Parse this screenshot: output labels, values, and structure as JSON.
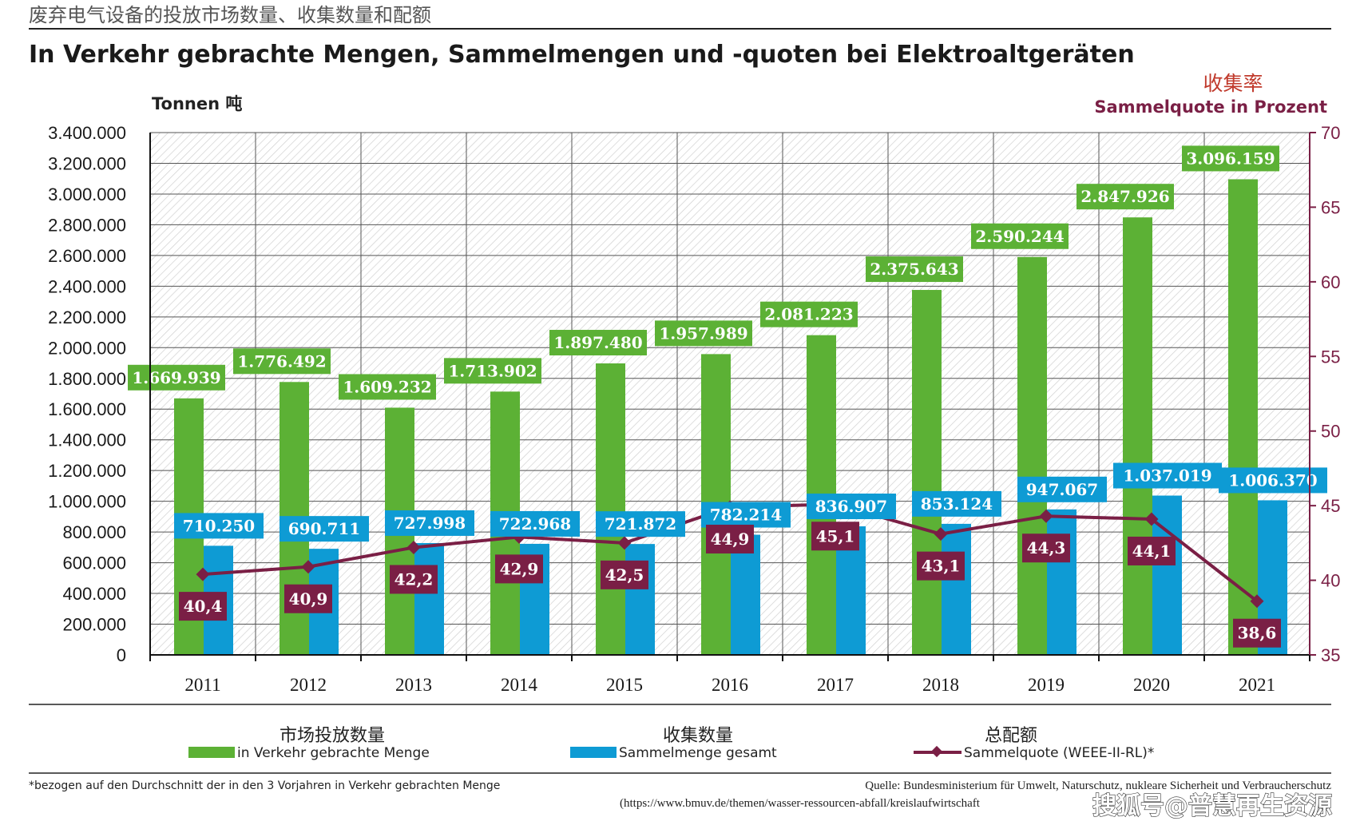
{
  "header": {
    "title_cn": "废弃电气设备的投放市场数量、收集数量和配额",
    "title_de": "In Verkehr gebrachte Mengen, Sammelmengen und -quoten bei Elektroaltgeräten",
    "unit_left": "Tonnen 吨",
    "rate_cn": "收集率",
    "rate_de": "Sammelquote in Prozent"
  },
  "colors": {
    "green": "#5cb135",
    "blue": "#0e9bd4",
    "maroon": "#7a1f45",
    "grid": "#555555"
  },
  "chart_data": {
    "type": "bar",
    "title": "In Verkehr gebrachte Mengen, Sammelmengen und -quoten bei Elektroaltgeräten",
    "categories": [
      "2011",
      "2012",
      "2013",
      "2014",
      "2015",
      "2016",
      "2017",
      "2018",
      "2019",
      "2020",
      "2021"
    ],
    "series": [
      {
        "name": "in Verkehr gebrachte Menge",
        "name_cn": "市场投放数量",
        "axis": "left",
        "values": [
          1669939,
          1776492,
          1609232,
          1713902,
          1897480,
          1957989,
          2081223,
          2375643,
          2590244,
          2847926,
          3096159
        ],
        "labels": [
          "1.669.939",
          "1.776.492",
          "1.609.232",
          "1.713.902",
          "1.897.480",
          "1.957.989",
          "2.081.223",
          "2.375.643",
          "2.590.244",
          "2.847.926",
          "3.096.159"
        ]
      },
      {
        "name": "Sammelmenge gesamt",
        "name_cn": "收集数量",
        "axis": "left",
        "values": [
          710250,
          690711,
          727998,
          722968,
          721872,
          782214,
          836907,
          853124,
          947067,
          1037019,
          1006370
        ],
        "labels": [
          "710.250",
          "690.711",
          "727.998",
          "722.968",
          "721.872",
          "782.214",
          "836.907",
          "853.124",
          "947.067",
          "1.037.019",
          "1.006.370"
        ]
      },
      {
        "name": "Sammelquote (WEEE-II-RL)*",
        "name_cn": "总配额",
        "axis": "right",
        "type": "line",
        "values": [
          40.4,
          40.9,
          42.2,
          42.9,
          42.5,
          44.9,
          45.1,
          43.1,
          44.3,
          44.1,
          38.6
        ],
        "labels": [
          "40,4",
          "40,9",
          "42,2",
          "42,9",
          "42,5",
          "44,9",
          "45,1",
          "43,1",
          "44,3",
          "44,1",
          "38,6"
        ]
      }
    ],
    "ylabel": "Tonnen 吨",
    "ylim": [
      0,
      3400000
    ],
    "yticks": [
      "0",
      "200.000",
      "400.000",
      "600.000",
      "800.000",
      "1.000.000",
      "1.200.000",
      "1.400.000",
      "1.600.000",
      "1.800.000",
      "2.000.000",
      "2.200.000",
      "2.400.000",
      "2.600.000",
      "2.800.000",
      "3.000.000",
      "3.200.000",
      "3.400.000"
    ],
    "y2label": "Sammelquote in Prozent",
    "y2lim": [
      35,
      70
    ],
    "y2ticks": [
      "35",
      "40",
      "45",
      "50",
      "55",
      "60",
      "65",
      "70"
    ],
    "legend_position": "bottom"
  },
  "footer": {
    "note": "*bezogen auf den Durchschnitt der in den 3 Vorjahren in Verkehr gebrachten Menge",
    "source": "Quelle: Bundesministerium für Umwelt, Naturschutz, nukleare Sicherheit und Verbraucherschutz",
    "url": "(https://www.bmuv.de/themen/wasser-ressourcen-abfall/kreislaufwirtschaft",
    "watermark": "搜狐号@普慧再生资源"
  }
}
